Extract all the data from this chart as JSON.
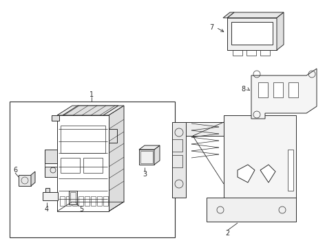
{
  "bg_color": "#ffffff",
  "line_color": "#2a2a2a",
  "lw": 0.7,
  "fig_width": 4.89,
  "fig_height": 3.6,
  "dpi": 100,
  "font_size": 7.0
}
